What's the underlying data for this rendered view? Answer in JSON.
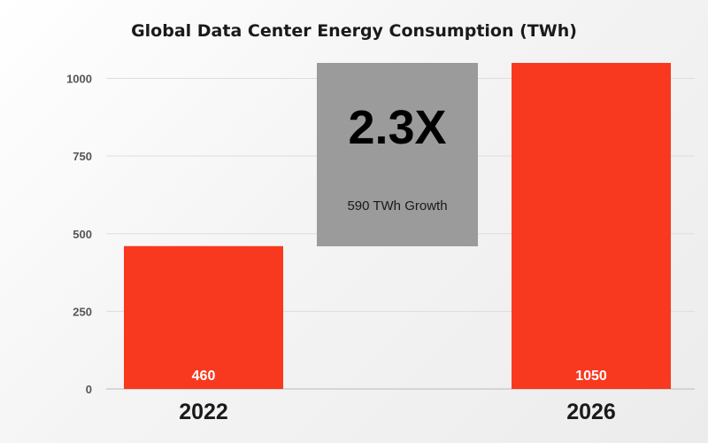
{
  "chart_data": {
    "type": "bar",
    "title": "Global Data Center Energy Consumption (TWh)",
    "categories": [
      "2022",
      "2026"
    ],
    "values": [
      460,
      1050
    ],
    "ylim": [
      0,
      1050
    ],
    "yticks": [
      0,
      250,
      500,
      750,
      1000
    ],
    "grid": true,
    "bar_color": "#f8391f",
    "annotation": {
      "headline": "2.3X",
      "text": "590 TWh Growth",
      "color": "#9b9b9b"
    }
  }
}
